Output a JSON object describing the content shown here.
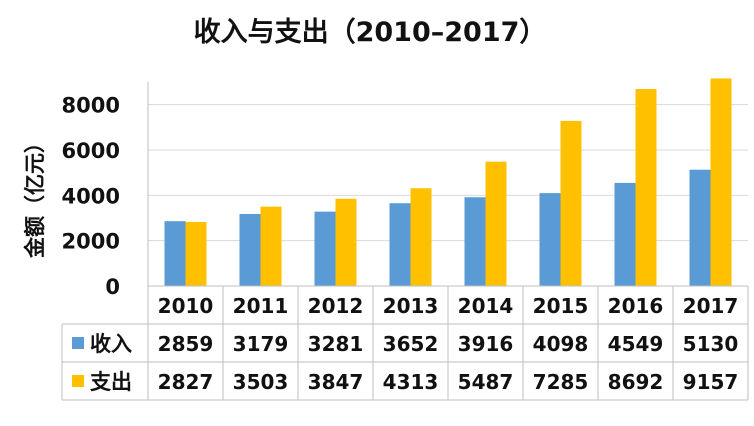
{
  "chart_data": {
    "type": "bar",
    "title": "收入与支出（2010–2017）",
    "ylabel": "金额（亿元）",
    "xlabel": "",
    "ylim": [
      0,
      9000
    ],
    "yticks": [
      0,
      2000,
      4000,
      6000,
      8000
    ],
    "categories": [
      "2010",
      "2011",
      "2012",
      "2013",
      "2014",
      "2015",
      "2016",
      "2017"
    ],
    "series": [
      {
        "name": "收入",
        "color": "#5b9bd5",
        "values": [
          2859,
          3179,
          3281,
          3652,
          3916,
          4098,
          4549,
          5130
        ]
      },
      {
        "name": "支出",
        "color": "#ffc000",
        "values": [
          2827,
          3503,
          3847,
          4313,
          5487,
          7285,
          8692,
          9157
        ]
      }
    ],
    "grid": true,
    "legend": "data-table"
  }
}
